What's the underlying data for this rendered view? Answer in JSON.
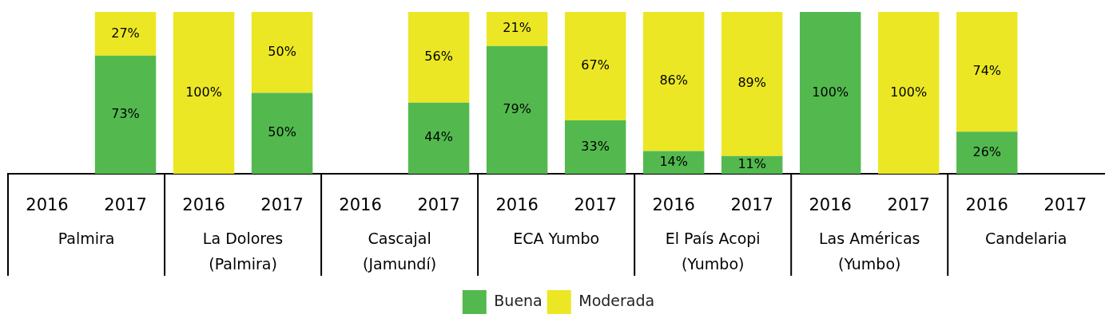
{
  "chart_data": {
    "type": "bar",
    "stacked": true,
    "categories": [
      "2016",
      "2017",
      "2016",
      "2017",
      "2016",
      "2017",
      "2016",
      "2017",
      "2016",
      "2017",
      "2016",
      "2017",
      "2016",
      "2017"
    ],
    "series": [
      {
        "name": "Buena",
        "color": "#53b94f",
        "values": [
          null,
          73,
          null,
          50,
          null,
          44,
          79,
          33,
          14,
          11,
          100,
          null,
          26,
          null
        ],
        "value_labels": [
          null,
          "73%",
          null,
          "50%",
          null,
          "44%",
          "79%",
          "33%",
          "14%",
          "11%",
          "100%",
          null,
          "26%",
          null
        ]
      },
      {
        "name": "Moderada",
        "color": "#ebe724",
        "values": [
          null,
          27,
          100,
          50,
          null,
          56,
          21,
          67,
          86,
          89,
          null,
          100,
          74,
          null
        ],
        "value_labels": [
          null,
          "27%",
          "100%",
          "50%",
          null,
          "56%",
          "21%",
          "67%",
          "86%",
          "89%",
          null,
          "100%",
          "74%",
          null
        ]
      }
    ],
    "tick_labels": "x",
    "grid": false,
    "legend": "bottom",
    "annotations": [
      "Palmira",
      "La Dolores (Palmira)",
      "Cascajal (Jamundí)",
      "ECA Yumbo",
      "El País Acopi (Yumbo)",
      "Las Américas (Yumbo)",
      "Candelaria"
    ]
  }
}
